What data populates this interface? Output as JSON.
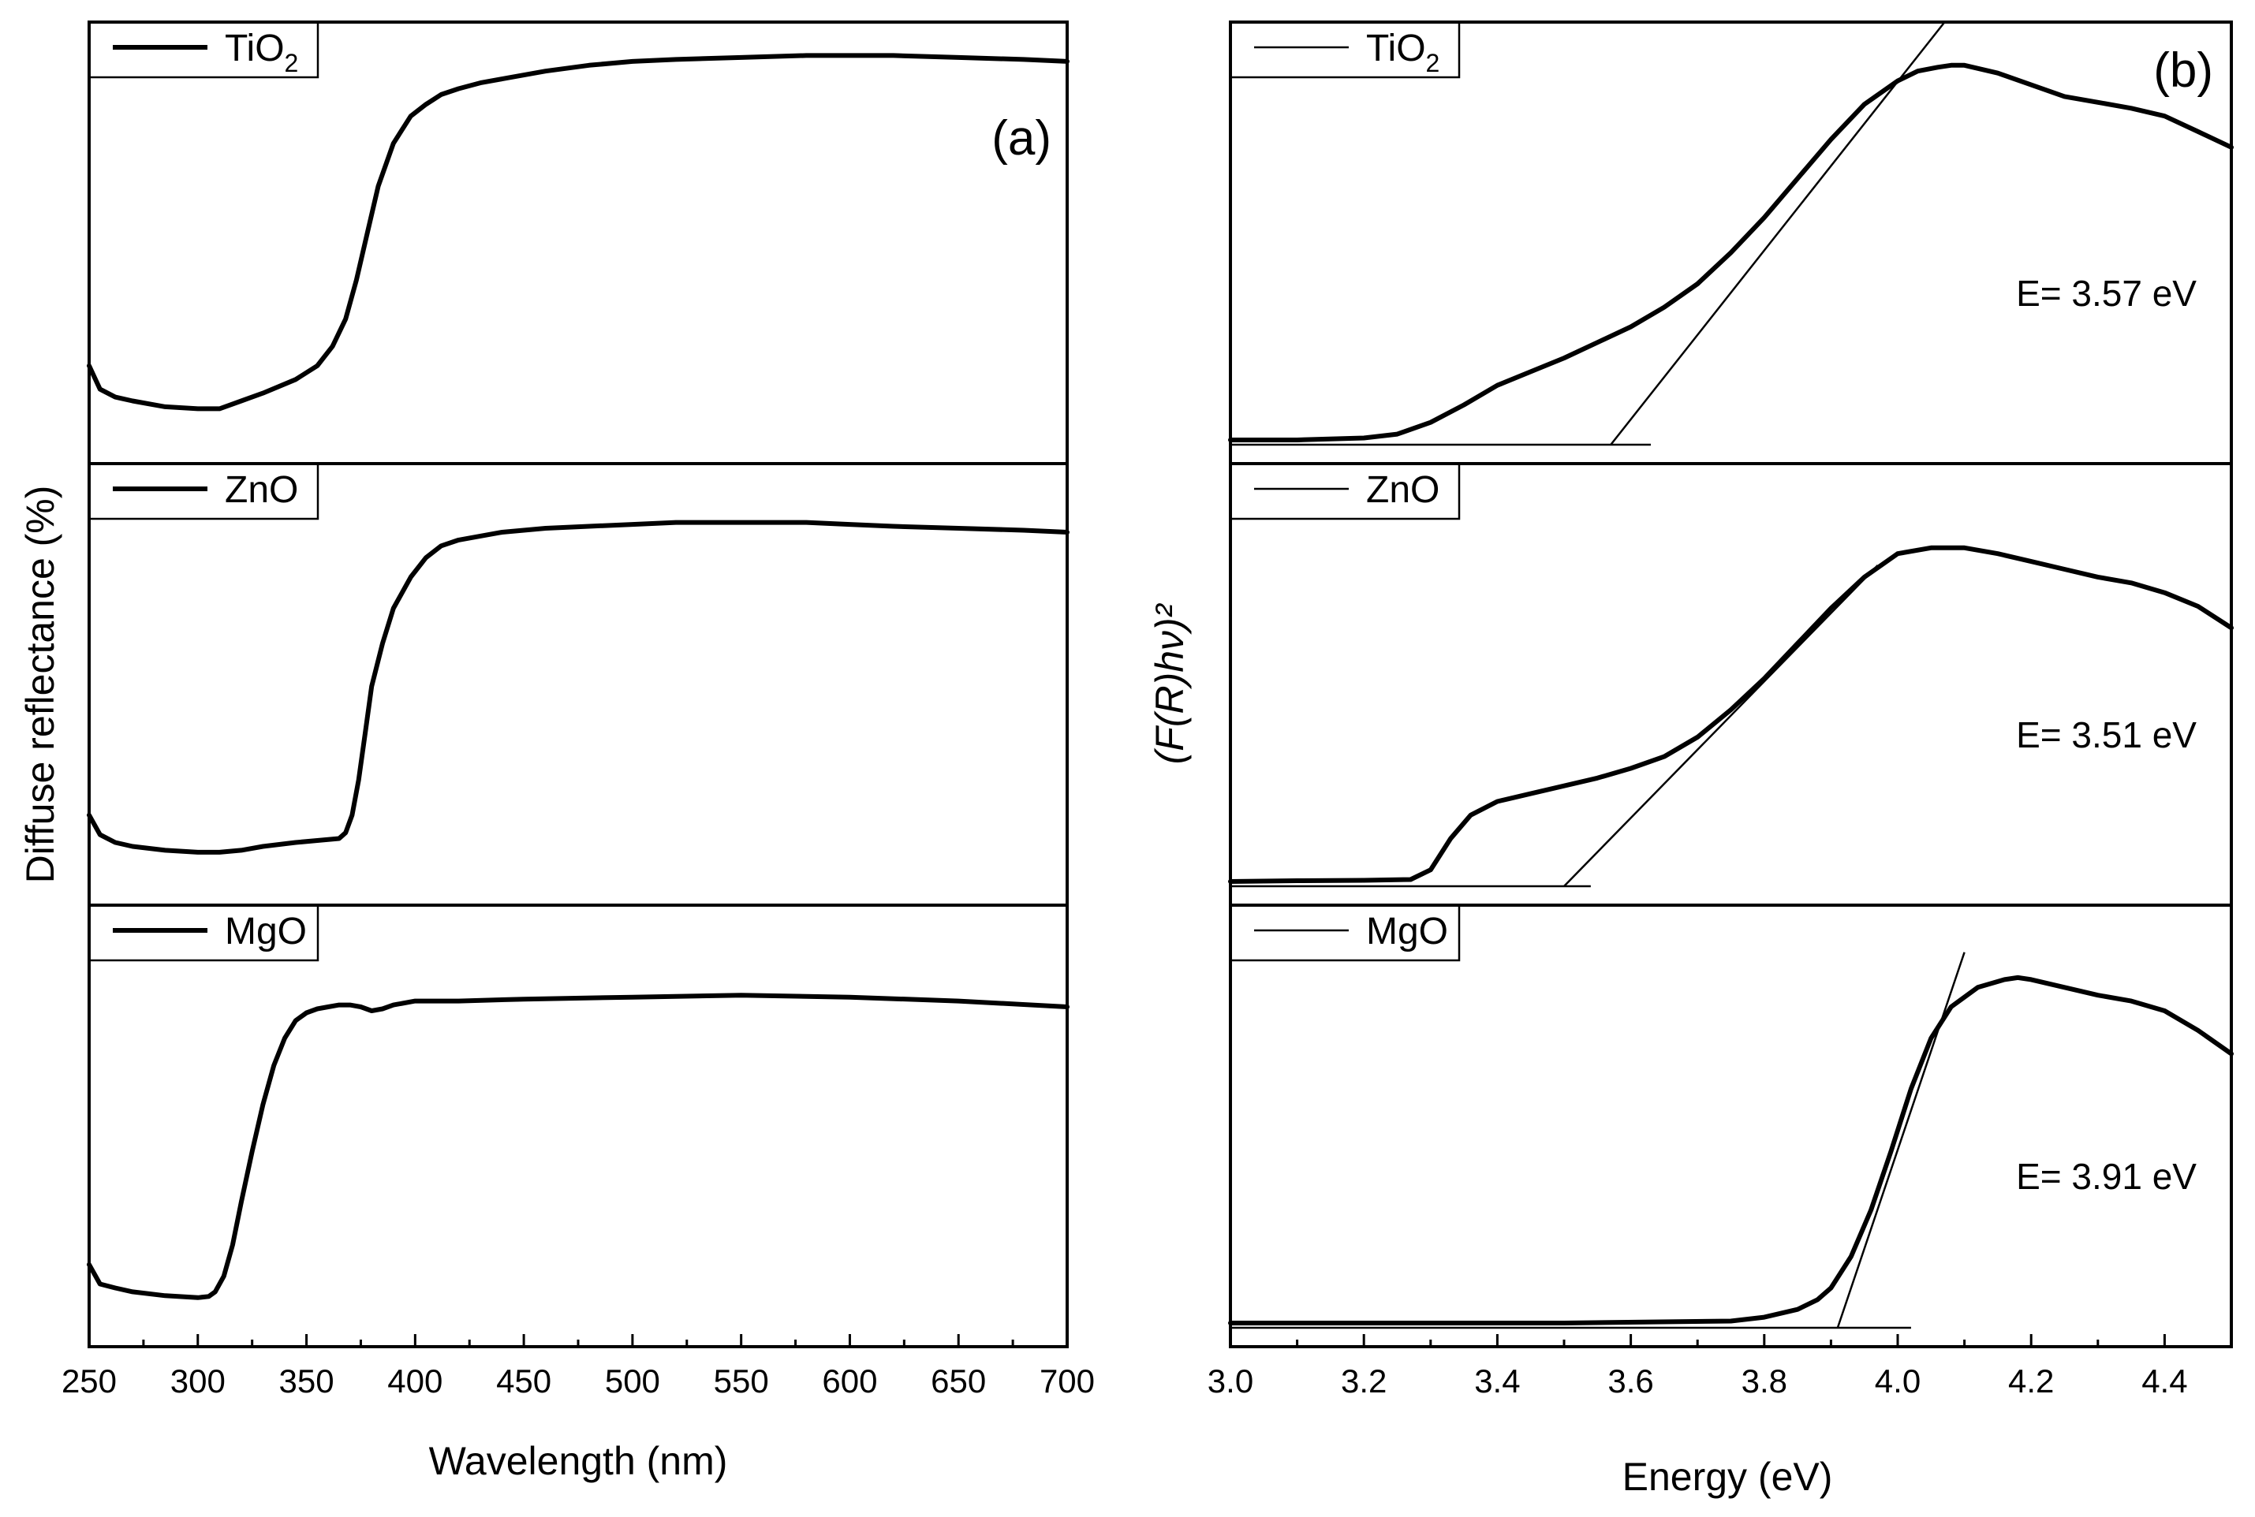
{
  "chart_data": [
    {
      "id": "a",
      "type": "line",
      "panel_label": "(a)",
      "xlabel": "Wavelength (nm)",
      "ylabel": "Diffuse reflectance (%)",
      "xlim": [
        250,
        700
      ],
      "xticks": [
        250,
        300,
        350,
        400,
        450,
        500,
        550,
        600,
        650,
        700
      ],
      "y_tick_labels_shown": false,
      "stacked": true,
      "series": [
        {
          "name": "TiO2",
          "label": "TiO",
          "label_sub": "2",
          "ylim": [
            0,
            100
          ],
          "x": [
            250,
            255,
            262,
            270,
            285,
            300,
            310,
            320,
            330,
            345,
            355,
            362,
            368,
            373,
            378,
            383,
            390,
            398,
            405,
            412,
            420,
            430,
            440,
            460,
            480,
            500,
            520,
            550,
            580,
            600,
            620,
            650,
            680,
            700
          ],
          "y": [
            19,
            13,
            11,
            10,
            8.5,
            8,
            8,
            10,
            12,
            15.5,
            19,
            24,
            31,
            41,
            53,
            65,
            76,
            83,
            86,
            88.5,
            90,
            91.5,
            92.5,
            94.5,
            96,
            97,
            97.5,
            98,
            98.5,
            98.5,
            98.5,
            98,
            97.5,
            97
          ]
        },
        {
          "name": "ZnO",
          "label": "ZnO",
          "label_sub": "",
          "ylim": [
            0,
            100
          ],
          "x": [
            250,
            255,
            262,
            270,
            285,
            300,
            310,
            320,
            330,
            345,
            355,
            365,
            368,
            371,
            374,
            377,
            380,
            385,
            390,
            398,
            405,
            412,
            420,
            430,
            440,
            460,
            480,
            500,
            520,
            550,
            580,
            600,
            620,
            650,
            680,
            700
          ],
          "y": [
            17,
            12,
            10,
            9,
            8,
            7.5,
            7.5,
            8,
            9,
            10,
            10.5,
            11,
            12.5,
            17,
            26,
            38,
            50,
            61,
            70,
            78,
            83,
            86,
            87.5,
            88.5,
            89.5,
            90.5,
            91,
            91.5,
            92,
            92,
            92,
            91.5,
            91,
            90.5,
            90,
            89.5
          ]
        },
        {
          "name": "MgO",
          "label": "MgO",
          "label_sub": "",
          "ylim": [
            0,
            100
          ],
          "x": [
            250,
            255,
            262,
            270,
            285,
            300,
            305,
            308,
            312,
            316,
            320,
            325,
            330,
            335,
            340,
            345,
            350,
            355,
            360,
            365,
            370,
            375,
            380,
            385,
            390,
            400,
            420,
            450,
            500,
            550,
            600,
            650,
            700
          ],
          "y": [
            15,
            10,
            9,
            8,
            7,
            6.5,
            6.8,
            8,
            12,
            20,
            31,
            44,
            56,
            66,
            73,
            77.5,
            79.5,
            80.5,
            81,
            81.5,
            81.5,
            81,
            80,
            80.5,
            81.5,
            82.5,
            82.5,
            83,
            83.5,
            84,
            83.5,
            82.5,
            81
          ]
        }
      ]
    },
    {
      "id": "b",
      "type": "line",
      "panel_label": "(b)",
      "xlabel": "Energy (eV)",
      "ylabel": "(F(R)hν)²",
      "xlim": [
        3.0,
        4.5
      ],
      "xticks": [
        "3.0",
        "3.2",
        "3.4",
        "3.6",
        "3.8",
        "4.0",
        "4.2",
        "4.4"
      ],
      "y_tick_labels_shown": false,
      "stacked": true,
      "series": [
        {
          "name": "TiO2",
          "label": "TiO",
          "label_sub": "2",
          "ylim": [
            0,
            100
          ],
          "annotation": "E= 3.57 eV",
          "band_gap_ev": 3.57,
          "x": [
            3.0,
            3.1,
            3.2,
            3.25,
            3.3,
            3.35,
            3.4,
            3.45,
            3.5,
            3.55,
            3.6,
            3.65,
            3.7,
            3.75,
            3.8,
            3.85,
            3.9,
            3.95,
            4.0,
            4.03,
            4.06,
            4.08,
            4.1,
            4.15,
            4.2,
            4.25,
            4.3,
            4.35,
            4.4,
            4.45,
            4.5
          ],
          "y": [
            0,
            0,
            0.5,
            1.5,
            4.5,
            9,
            14,
            17.5,
            21,
            25,
            29,
            34,
            40,
            48,
            57,
            67,
            77,
            86,
            92,
            94.5,
            95.5,
            96,
            96,
            94,
            91,
            88,
            86.5,
            85,
            83,
            79,
            75
          ],
          "baseline": {
            "x": [
              3.0,
              3.63
            ],
            "y": [
              0,
              0
            ]
          },
          "tangent": {
            "x": [
              3.57,
              4.07
            ],
            "y": [
              0,
              107
            ]
          }
        },
        {
          "name": "ZnO",
          "label": "ZnO",
          "label_sub": "",
          "ylim": [
            0,
            100
          ],
          "annotation": "E= 3.51 eV",
          "band_gap_ev": 3.51,
          "x": [
            3.0,
            3.1,
            3.2,
            3.27,
            3.3,
            3.33,
            3.36,
            3.4,
            3.45,
            3.5,
            3.55,
            3.6,
            3.65,
            3.7,
            3.75,
            3.8,
            3.85,
            3.9,
            3.95,
            4.0,
            4.05,
            4.1,
            4.15,
            4.2,
            4.25,
            4.3,
            4.35,
            4.4,
            4.45,
            4.5
          ],
          "y": [
            0,
            0.2,
            0.3,
            0.5,
            3,
            11,
            17,
            20.5,
            22.5,
            24.5,
            26.5,
            29,
            32,
            37,
            44,
            52,
            61,
            70,
            78,
            84,
            85.5,
            85.5,
            84,
            82,
            80,
            78,
            76.5,
            74,
            70.5,
            65
          ],
          "baseline": {
            "x": [
              3.0,
              3.54
            ],
            "y": [
              0,
              0
            ]
          },
          "tangent": {
            "x": [
              3.5,
              3.97
            ],
            "y": [
              0,
              81
            ]
          }
        },
        {
          "name": "MgO",
          "label": "MgO",
          "label_sub": "",
          "ylim": [
            0,
            100
          ],
          "annotation": "E= 3.91 eV",
          "band_gap_ev": 3.91,
          "x": [
            3.0,
            3.5,
            3.75,
            3.8,
            3.85,
            3.88,
            3.9,
            3.93,
            3.96,
            3.99,
            4.02,
            4.05,
            4.08,
            4.12,
            4.16,
            4.18,
            4.2,
            4.25,
            4.3,
            4.35,
            4.4,
            4.45,
            4.5
          ],
          "y": [
            0,
            0,
            0.5,
            1.5,
            3.5,
            6,
            9,
            17,
            29,
            44,
            60,
            73,
            81,
            86,
            88,
            88.5,
            88,
            86,
            84,
            82.5,
            80,
            75,
            69
          ],
          "baseline": {
            "x": [
              3.0,
              4.02
            ],
            "y": [
              0,
              0
            ]
          },
          "tangent": {
            "x": [
              3.91,
              4.1
            ],
            "y": [
              0,
              95
            ]
          }
        }
      ]
    }
  ]
}
